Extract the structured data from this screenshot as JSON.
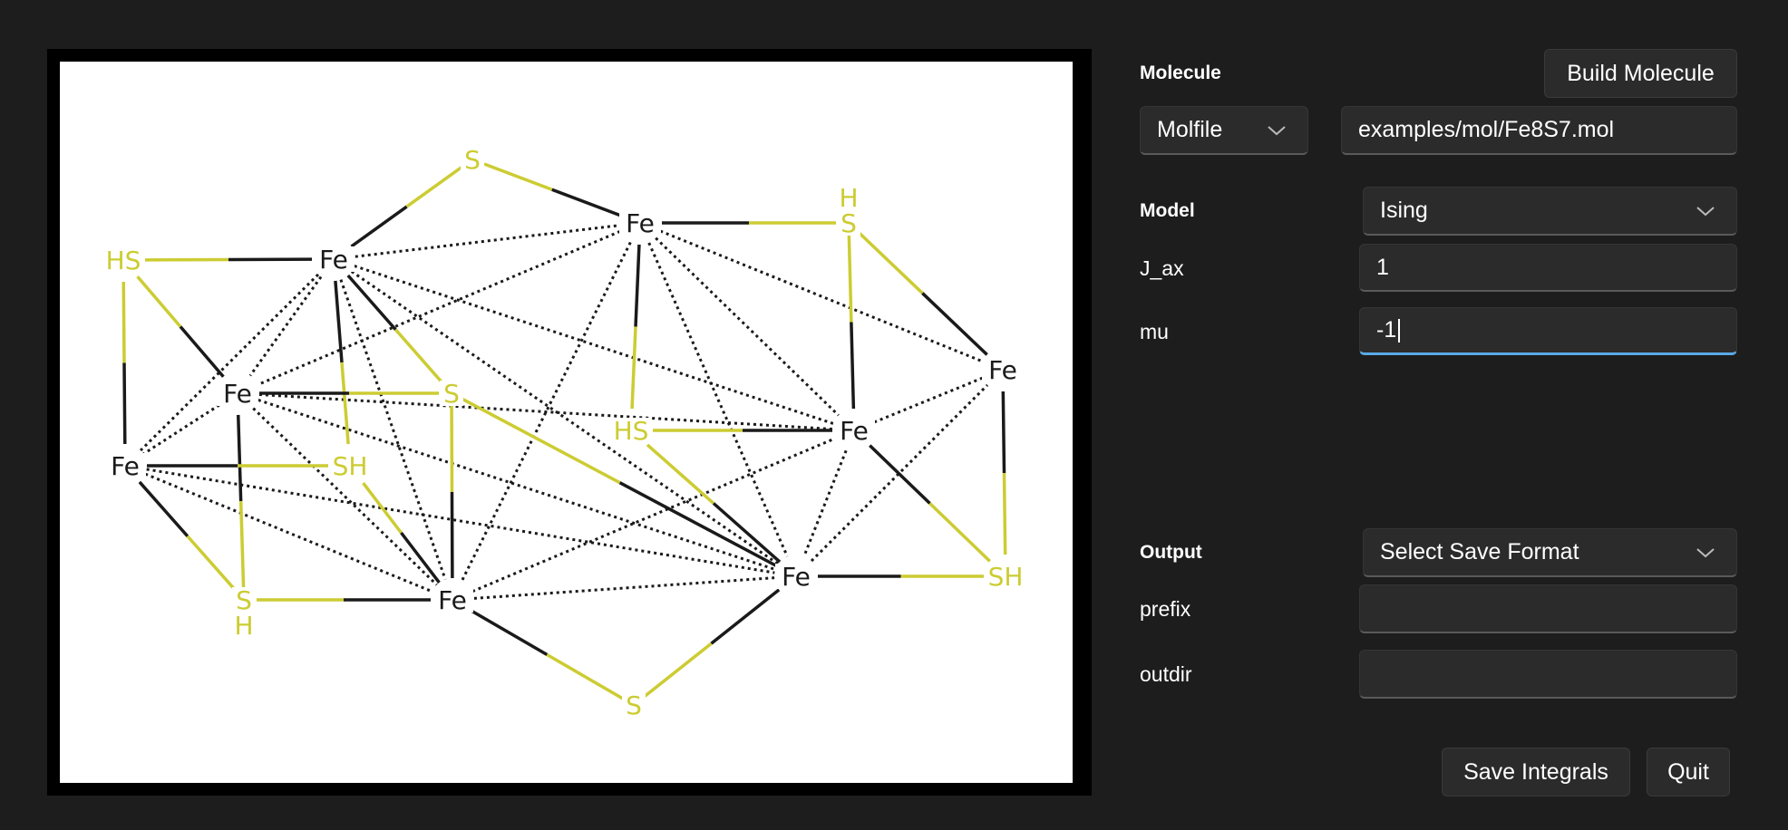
{
  "molecule": {
    "section_label": "Molecule",
    "build_button": "Build Molecule",
    "format_select": "Molfile",
    "path_value": "examples/mol/Fe8S7.mol"
  },
  "model": {
    "section_label": "Model",
    "model_select": "Ising",
    "params": [
      {
        "label": "J_ax",
        "value": "1"
      },
      {
        "label": "mu",
        "value": "-1"
      }
    ]
  },
  "output": {
    "section_label": "Output",
    "format_select": "Select Save Format",
    "prefix_label": "prefix",
    "prefix_value": "",
    "outdir_label": "outdir",
    "outdir_value": ""
  },
  "actions": {
    "save_button": "Save Integrals",
    "quit_button": "Quit"
  },
  "structure": {
    "colors": {
      "bond": "#1a1a1a",
      "sulfur": "#cccc33",
      "iron": "#1a1a1a"
    },
    "atoms": [
      {
        "id": "fe1",
        "label": "Fe",
        "element": "Fe"
      },
      {
        "id": "fe2",
        "label": "Fe",
        "element": "Fe"
      },
      {
        "id": "fe3",
        "label": "Fe",
        "element": "Fe"
      },
      {
        "id": "fe4",
        "label": "Fe",
        "element": "Fe"
      },
      {
        "id": "fe5",
        "label": "Fe",
        "element": "Fe"
      },
      {
        "id": "fe6",
        "label": "Fe",
        "element": "Fe"
      },
      {
        "id": "fe7",
        "label": "Fe",
        "element": "Fe"
      },
      {
        "id": "fe8",
        "label": "Fe",
        "element": "Fe"
      },
      {
        "id": "s1",
        "label": "S",
        "element": "S"
      },
      {
        "id": "s2",
        "label": "S",
        "element": "S"
      },
      {
        "id": "s3",
        "label": "S",
        "element": "S"
      },
      {
        "id": "hs1",
        "label": "HS",
        "element": "S"
      },
      {
        "id": "hs2",
        "label": "HS",
        "element": "S"
      },
      {
        "id": "sh1",
        "label": "SH",
        "element": "S"
      },
      {
        "id": "sh2",
        "label": "SH",
        "element": "S"
      },
      {
        "id": "sh3",
        "label": "S",
        "element": "S",
        "h_label": "H"
      },
      {
        "id": "sh4",
        "label": "S",
        "element": "S",
        "h_label": "H"
      }
    ],
    "bonds": [
      [
        "fe1",
        "s1"
      ],
      [
        "s1",
        "fe2"
      ],
      [
        "hs1",
        "fe1"
      ],
      [
        "hs1",
        "fe3"
      ],
      [
        "hs1",
        "fe4"
      ],
      [
        "fe2",
        "sh4"
      ],
      [
        "sh4",
        "fe6"
      ],
      [
        "fe2",
        "hs2"
      ],
      [
        "sh4",
        "fe8"
      ],
      [
        "fe1",
        "s2"
      ],
      [
        "fe1",
        "sh1"
      ],
      [
        "fe3",
        "s2"
      ],
      [
        "s2",
        "fe5"
      ],
      [
        "s2",
        "fe7"
      ],
      [
        "fe3",
        "sh3"
      ],
      [
        "fe4",
        "sh1"
      ],
      [
        "sh1",
        "fe5"
      ],
      [
        "fe4",
        "sh3"
      ],
      [
        "sh3",
        "fe5"
      ],
      [
        "hs2",
        "fe6"
      ],
      [
        "hs2",
        "fe7"
      ],
      [
        "fe6",
        "sh2"
      ],
      [
        "fe8",
        "sh2"
      ],
      [
        "sh2",
        "fe7"
      ],
      [
        "fe5",
        "s3"
      ],
      [
        "s3",
        "fe7"
      ]
    ],
    "dotted": [
      [
        "fe1",
        "fe2"
      ],
      [
        "fe1",
        "fe3"
      ],
      [
        "fe1",
        "fe4"
      ],
      [
        "fe1",
        "fe5"
      ],
      [
        "fe1",
        "fe6"
      ],
      [
        "fe1",
        "fe7"
      ],
      [
        "fe2",
        "fe3"
      ],
      [
        "fe2",
        "fe5"
      ],
      [
        "fe2",
        "fe6"
      ],
      [
        "fe2",
        "fe7"
      ],
      [
        "fe2",
        "fe8"
      ],
      [
        "fe3",
        "fe4"
      ],
      [
        "fe3",
        "fe5"
      ],
      [
        "fe3",
        "fe6"
      ],
      [
        "fe3",
        "fe7"
      ],
      [
        "fe4",
        "fe5"
      ],
      [
        "fe4",
        "fe7"
      ],
      [
        "fe5",
        "fe6"
      ],
      [
        "fe5",
        "fe7"
      ],
      [
        "fe6",
        "fe7"
      ],
      [
        "fe6",
        "fe8"
      ],
      [
        "fe7",
        "fe8"
      ]
    ]
  }
}
